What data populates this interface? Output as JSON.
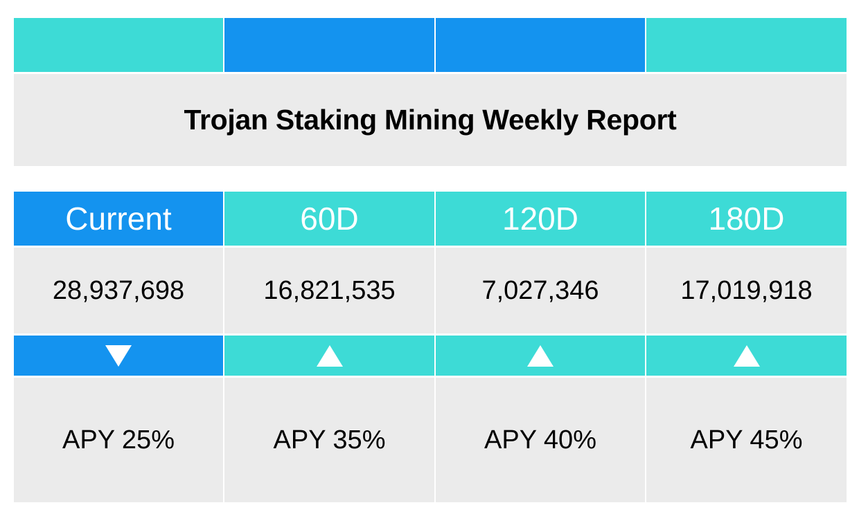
{
  "report": {
    "title": "Trojan Staking Mining Weekly Report",
    "colors": {
      "teal": "#3ddbd6",
      "blue": "#1493ef",
      "panel": "#ebebeb"
    },
    "top_band": [
      "teal",
      "blue",
      "blue",
      "teal"
    ],
    "columns": [
      {
        "label": "Current",
        "value": "28,937,698",
        "trend": "down",
        "trend_icon": "triangle-down-icon",
        "apy": "APY 25%",
        "accent": "blue"
      },
      {
        "label": "60D",
        "value": "16,821,535",
        "trend": "up",
        "trend_icon": "triangle-up-icon",
        "apy": "APY 35%",
        "accent": "teal"
      },
      {
        "label": "120D",
        "value": "7,027,346",
        "trend": "up",
        "trend_icon": "triangle-up-icon",
        "apy": "APY 40%",
        "accent": "teal"
      },
      {
        "label": "180D",
        "value": "17,019,918",
        "trend": "up",
        "trend_icon": "triangle-up-icon",
        "apy": "APY 45%",
        "accent": "teal"
      }
    ]
  }
}
